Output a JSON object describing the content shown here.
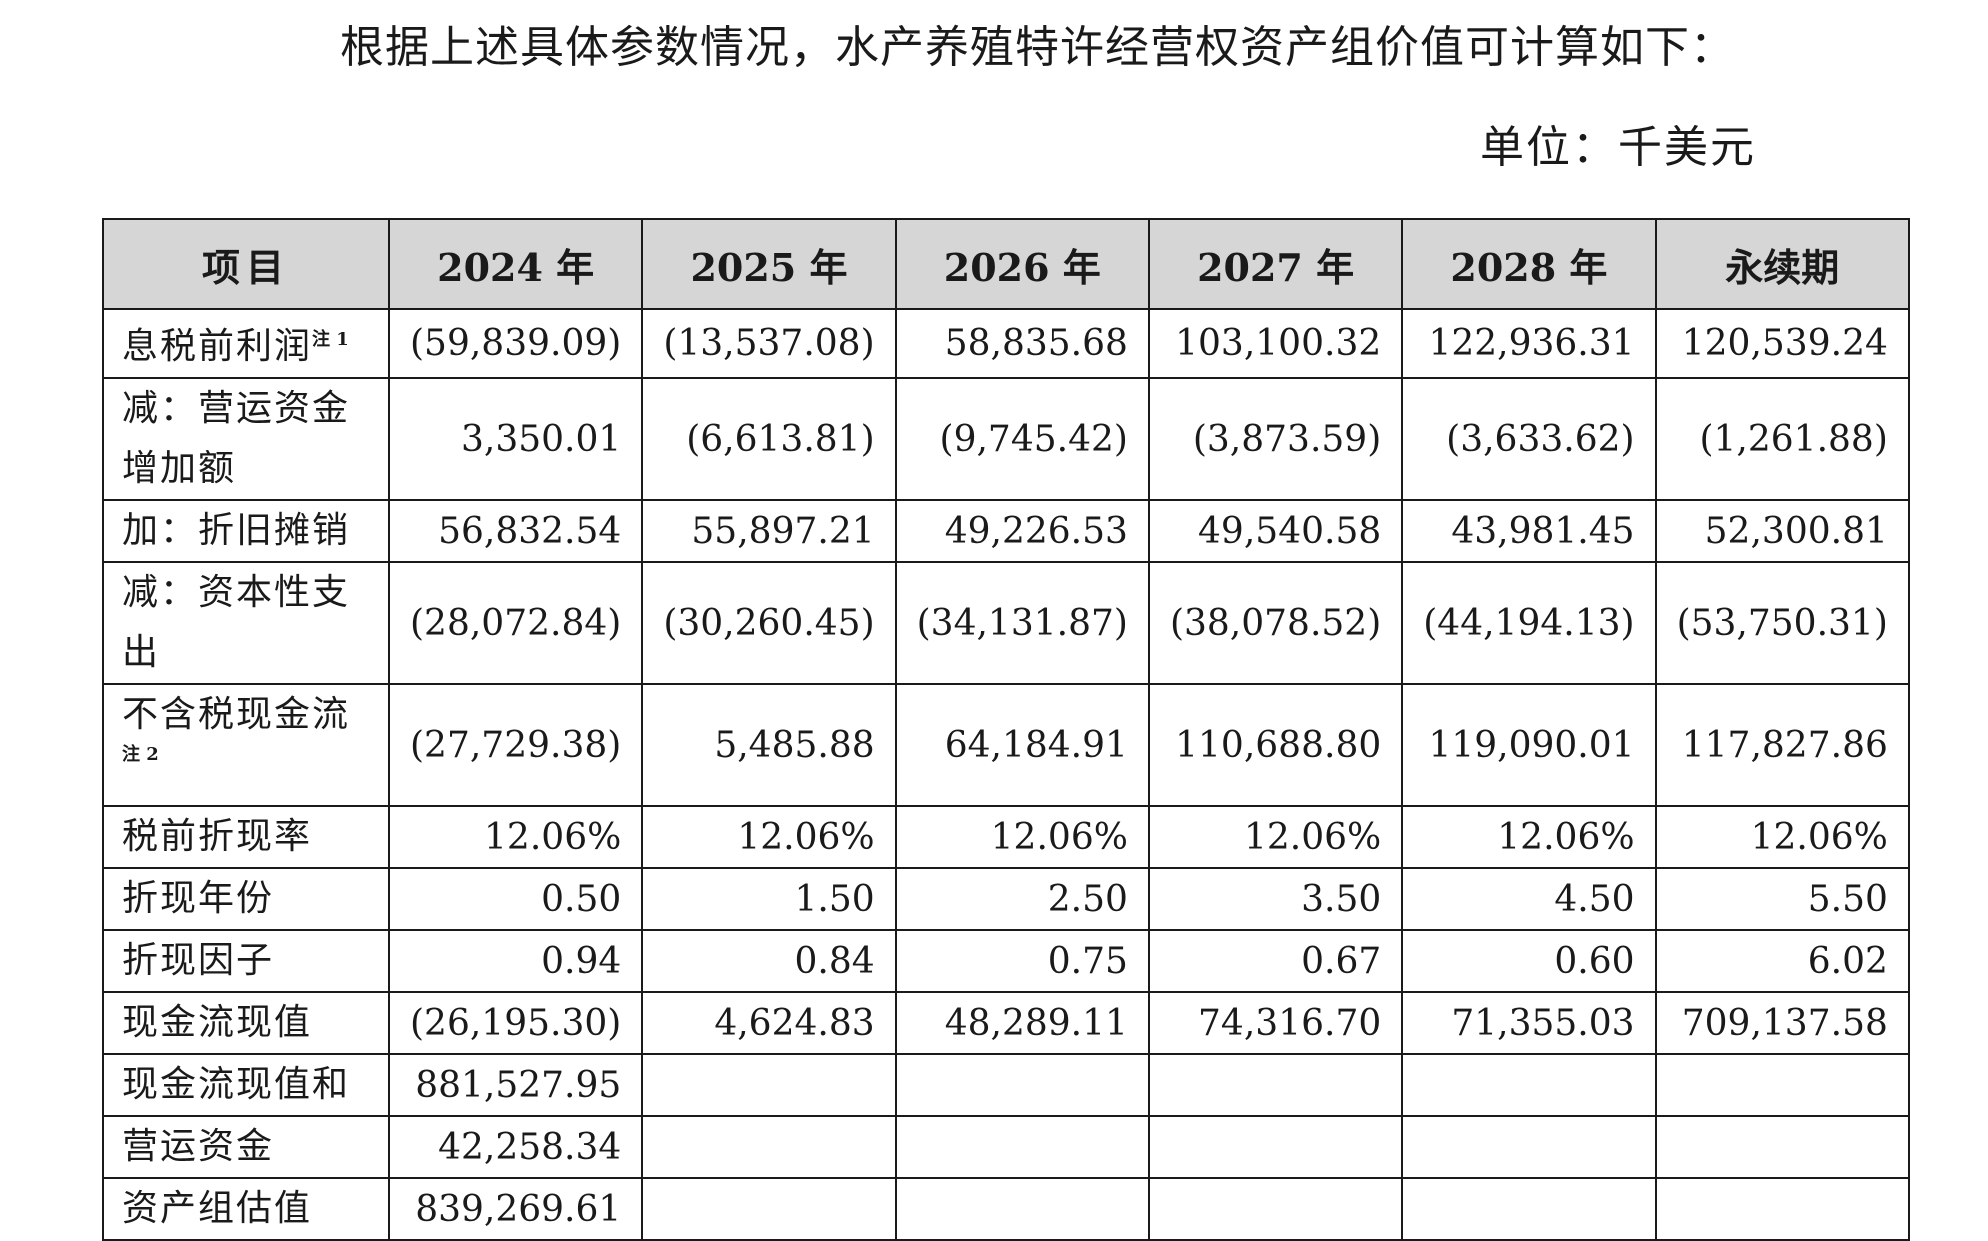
{
  "intro_text": "根据上述具体参数情况，水产养殖特许经营权资产组价值可计算如下：",
  "unit_text": "单位：千美元",
  "table": {
    "headers": [
      "项目",
      "2024 年",
      "2025 年",
      "2026 年",
      "2027 年",
      "2028 年",
      "永续期"
    ],
    "rows": [
      {
        "label": "息税前利润",
        "note": "注 1",
        "values": [
          "(59,839.09)",
          "(13,537.08)",
          "58,835.68",
          "103,100.32",
          "122,936.31",
          "120,539.24"
        ]
      },
      {
        "label": "减：营运资金增加额",
        "note": "",
        "values": [
          "3,350.01",
          "(6,613.81)",
          "(9,745.42)",
          "(3,873.59)",
          "(3,633.62)",
          "(1,261.88)"
        ]
      },
      {
        "label": "加：折旧摊销",
        "note": "",
        "values": [
          "56,832.54",
          "55,897.21",
          "49,226.53",
          "49,540.58",
          "43,981.45",
          "52,300.81"
        ]
      },
      {
        "label": "减：资本性支出",
        "note": "",
        "values": [
          "(28,072.84)",
          "(30,260.45)",
          "(34,131.87)",
          "(38,078.52)",
          "(44,194.13)",
          "(53,750.31)"
        ]
      },
      {
        "label": "不含税现金流",
        "note": "注 2",
        "values": [
          "(27,729.38)",
          "5,485.88",
          "64,184.91",
          "110,688.80",
          "119,090.01",
          "117,827.86"
        ]
      },
      {
        "label": "税前折现率",
        "note": "",
        "values": [
          "12.06%",
          "12.06%",
          "12.06%",
          "12.06%",
          "12.06%",
          "12.06%"
        ]
      },
      {
        "label": "折现年份",
        "note": "",
        "values": [
          "0.50",
          "1.50",
          "2.50",
          "3.50",
          "4.50",
          "5.50"
        ]
      },
      {
        "label": "折现因子",
        "note": "",
        "values": [
          "0.94",
          "0.84",
          "0.75",
          "0.67",
          "0.60",
          "6.02"
        ]
      },
      {
        "label": "现金流现值",
        "note": "",
        "values": [
          "(26,195.30)",
          "4,624.83",
          "48,289.11",
          "74,316.70",
          "71,355.03",
          "709,137.58"
        ]
      },
      {
        "label": "现金流现值和",
        "note": "",
        "values": [
          "881,527.95",
          "",
          "",
          "",
          "",
          ""
        ]
      },
      {
        "label": "营运资金",
        "note": "",
        "values": [
          "42,258.34",
          "",
          "",
          "",
          "",
          ""
        ]
      },
      {
        "label": "资产组估值",
        "note": "",
        "values": [
          "839,269.61",
          "",
          "",
          "",
          "",
          ""
        ]
      }
    ]
  }
}
